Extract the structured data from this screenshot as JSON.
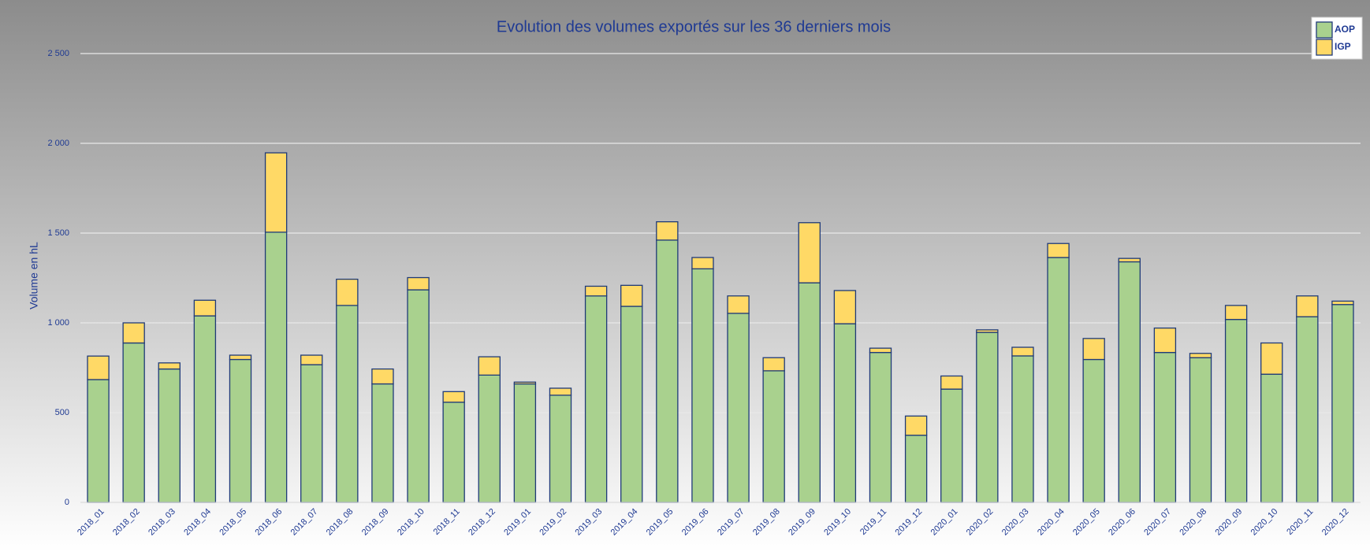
{
  "chart_data": {
    "type": "stacked_bar",
    "title": "Evolution des volumes exportés sur les 36 derniers mois",
    "y_label": "Volume en hL",
    "categories": [
      "2018_01",
      "2018_02",
      "2018_03",
      "2018_04",
      "2018_05",
      "2018_06",
      "2018_07",
      "2018_08",
      "2018_09",
      "2018_10",
      "2018_11",
      "2018_12",
      "2019_01",
      "2019_02",
      "2019_03",
      "2019_04",
      "2019_05",
      "2019_06",
      "2019_07",
      "2019_08",
      "2019_09",
      "2019_10",
      "2019_11",
      "2019_12",
      "2020_01",
      "2020_02",
      "2020_03",
      "2020_04",
      "2020_05",
      "2020_06",
      "2020_07",
      "2020_08",
      "2020_09",
      "2020_10",
      "2020_11",
      "2020_12"
    ],
    "series": [
      {
        "name": "AOP",
        "color": "#a9d18e",
        "values": [
          684,
          888,
          743,
          1039,
          796,
          1505,
          767,
          1097,
          660,
          1184,
          558,
          709,
          660,
          597,
          1150,
          1092,
          1461,
          1301,
          1053,
          733,
          1223,
          995,
          835,
          374,
          631,
          947,
          816,
          1364,
          796,
          1340,
          835,
          806,
          1019,
          714,
          1034,
          1102
        ]
      },
      {
        "name": "IGP",
        "color": "#ffd966",
        "values": [
          131,
          112,
          34,
          87,
          24,
          442,
          53,
          146,
          83,
          68,
          59,
          102,
          10,
          39,
          54,
          117,
          102,
          63,
          97,
          73,
          335,
          185,
          24,
          107,
          73,
          14,
          48,
          78,
          117,
          19,
          136,
          24,
          78,
          174,
          116,
          19
        ]
      }
    ],
    "ylim": [
      0,
      2500
    ],
    "yticks": [
      0,
      500,
      {
        "value": 1000,
        "label": "1 000"
      },
      {
        "value": 1500,
        "label": "1 500"
      },
      {
        "value": 2000,
        "label": "2 000"
      },
      {
        "value": 2500,
        "label": "2 500"
      }
    ],
    "grid": true,
    "legend": "top-right",
    "edge_color": "#1f3a78"
  }
}
